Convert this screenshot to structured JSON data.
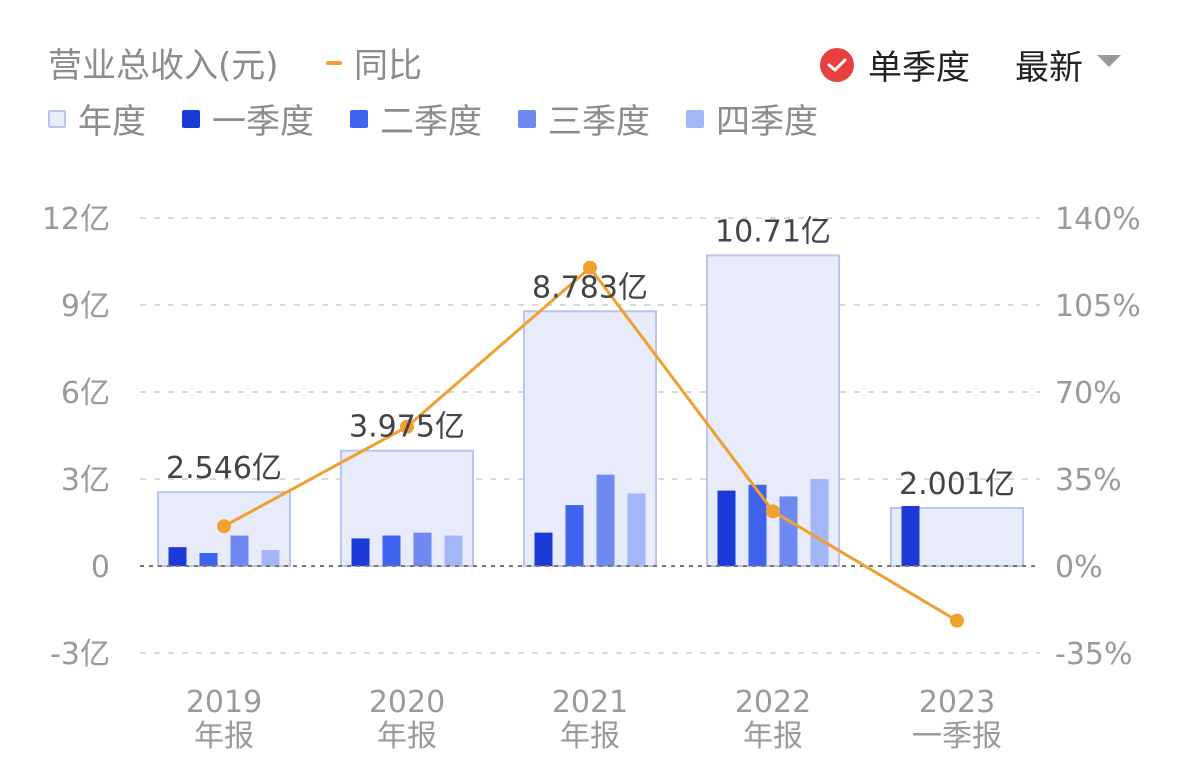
{
  "header": {
    "metric_title": "营业总收入(元)",
    "yoy_label": "同比",
    "single_quarter_label": "单季度",
    "sort_label": "最新"
  },
  "legend": [
    {
      "name": "年度",
      "color": "#e8ecfa",
      "border": "#b9c5ef"
    },
    {
      "name": "一季度",
      "color": "#1c3ad8"
    },
    {
      "name": "二季度",
      "color": "#3f62ef"
    },
    {
      "name": "三季度",
      "color": "#6e8af2"
    },
    {
      "name": "四季度",
      "color": "#a3b6f7"
    }
  ],
  "chart_data": {
    "type": "bar",
    "categories": [
      {
        "line1": "2019",
        "line2": "年报"
      },
      {
        "line1": "2020",
        "line2": "年报"
      },
      {
        "line1": "2021",
        "line2": "年报"
      },
      {
        "line1": "2022",
        "line2": "年报"
      },
      {
        "line1": "2023",
        "line2": "一季报"
      }
    ],
    "annual_values": [
      2.546,
      3.975,
      8.783,
      10.71,
      2.001
    ],
    "annual_labels": [
      "2.546亿",
      "3.975亿",
      "8.783亿",
      "10.71亿",
      "2.001亿"
    ],
    "quarters": [
      [
        0.65,
        0.45,
        1.05,
        0.55
      ],
      [
        0.95,
        1.05,
        1.15,
        1.05
      ],
      [
        1.15,
        2.1,
        3.15,
        2.5
      ],
      [
        2.6,
        2.8,
        2.4,
        3.0
      ],
      [
        2.07,
        null,
        null,
        null
      ]
    ],
    "yoy_percent": [
      16,
      56,
      120,
      22,
      -22
    ],
    "y_left": {
      "min": -3,
      "max": 12,
      "ticks": [
        12,
        9,
        6,
        3,
        0,
        -3
      ],
      "tick_labels": [
        "12亿",
        "9亿",
        "6亿",
        "3亿",
        "0",
        "-3亿"
      ]
    },
    "y_right": {
      "min": -35,
      "max": 140,
      "ticks": [
        140,
        105,
        70,
        35,
        0,
        -35
      ],
      "tick_labels": [
        "140%",
        "105%",
        "70%",
        "35%",
        "0%",
        "-35%"
      ]
    },
    "colors": {
      "annual_fill": "#e8ecfa",
      "annual_border": "#b9c5ef",
      "q1": "#1c3ad8",
      "q2": "#3f62ef",
      "q3": "#6e8af2",
      "q4": "#a3b6f7",
      "yoy_line": "#f0a030",
      "grid": "#d9d9d9",
      "axis_text": "#9a9a9a",
      "label_text": "#444444"
    }
  }
}
